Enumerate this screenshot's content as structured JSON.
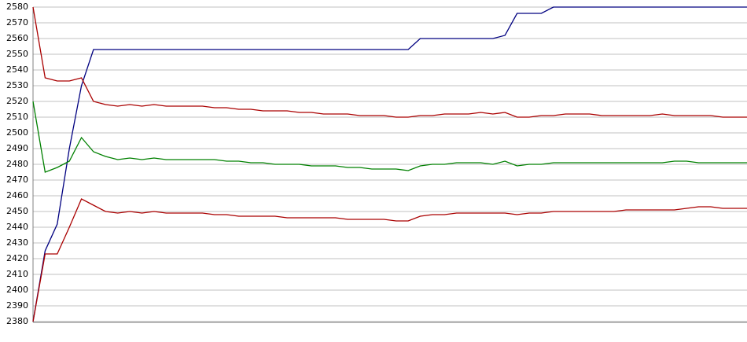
{
  "chart_data": {
    "type": "line",
    "categories": [
      null,
      null,
      null,
      null,
      null,
      null,
      null,
      null,
      null,
      null,
      null,
      null,
      null,
      null,
      null,
      null,
      null,
      null,
      null,
      null,
      null,
      null,
      null,
      null,
      null,
      null,
      null,
      null,
      null,
      null,
      null,
      null,
      null,
      null,
      null,
      null,
      null,
      null,
      null,
      null,
      null,
      null,
      null,
      null,
      null,
      null,
      null,
      null,
      null,
      null,
      null,
      null,
      null,
      null,
      null,
      null,
      null,
      null,
      null,
      null
    ],
    "series": [
      {
        "color": "#000080",
        "values": [
          2380,
          2425,
          2442,
          2490,
          2530,
          2553,
          2553,
          2553,
          2553,
          2553,
          2553,
          2553,
          2553,
          2553,
          2553,
          2553,
          2553,
          2553,
          2553,
          2553,
          2553,
          2553,
          2553,
          2553,
          2553,
          2553,
          2553,
          2553,
          2553,
          2553,
          2553,
          2553,
          2560,
          2560,
          2560,
          2560,
          2560,
          2560,
          2560,
          2562,
          2576,
          2576,
          2576,
          2580,
          2580,
          2580,
          2580,
          2580,
          2580,
          2580,
          2580,
          2580,
          2580,
          2580,
          2580,
          2580,
          2580,
          2580,
          2580,
          2580
        ]
      },
      {
        "color": "#aa0000",
        "values": [
          2580,
          2535,
          2533,
          2533,
          2535,
          2520,
          2518,
          2517,
          2518,
          2517,
          2518,
          2517,
          2517,
          2517,
          2517,
          2516,
          2516,
          2515,
          2515,
          2514,
          2514,
          2514,
          2513,
          2513,
          2512,
          2512,
          2512,
          2511,
          2511,
          2511,
          2510,
          2510,
          2511,
          2511,
          2512,
          2512,
          2512,
          2513,
          2512,
          2513,
          2510,
          2510,
          2511,
          2511,
          2512,
          2512,
          2512,
          2511,
          2511,
          2511,
          2511,
          2511,
          2512,
          2511,
          2511,
          2511,
          2511,
          2510,
          2510,
          2510
        ]
      },
      {
        "color": "#008000",
        "values": [
          2520,
          2475,
          2478,
          2482,
          2497,
          2488,
          2485,
          2483,
          2484,
          2483,
          2484,
          2483,
          2483,
          2483,
          2483,
          2483,
          2482,
          2482,
          2481,
          2481,
          2480,
          2480,
          2480,
          2479,
          2479,
          2479,
          2478,
          2478,
          2477,
          2477,
          2477,
          2476,
          2479,
          2480,
          2480,
          2481,
          2481,
          2481,
          2480,
          2482,
          2479,
          2480,
          2480,
          2481,
          2481,
          2481,
          2481,
          2481,
          2481,
          2481,
          2481,
          2481,
          2481,
          2482,
          2482,
          2481,
          2481,
          2481,
          2481,
          2481
        ]
      },
      {
        "color": "#aa0000",
        "values": [
          2380,
          2423,
          2423,
          2440,
          2458,
          2454,
          2450,
          2449,
          2450,
          2449,
          2450,
          2449,
          2449,
          2449,
          2449,
          2448,
          2448,
          2447,
          2447,
          2447,
          2447,
          2446,
          2446,
          2446,
          2446,
          2446,
          2445,
          2445,
          2445,
          2445,
          2444,
          2444,
          2447,
          2448,
          2448,
          2449,
          2449,
          2449,
          2449,
          2449,
          2448,
          2449,
          2449,
          2450,
          2450,
          2450,
          2450,
          2450,
          2450,
          2451,
          2451,
          2451,
          2451,
          2451,
          2452,
          2453,
          2453,
          2452,
          2452,
          2452
        ]
      }
    ],
    "ylim": [
      2380,
      2580
    ],
    "yticks": [
      2380,
      2390,
      2400,
      2410,
      2420,
      2430,
      2440,
      2450,
      2460,
      2470,
      2480,
      2490,
      2500,
      2510,
      2520,
      2530,
      2540,
      2550,
      2560,
      2570,
      2580
    ],
    "grid": true
  }
}
